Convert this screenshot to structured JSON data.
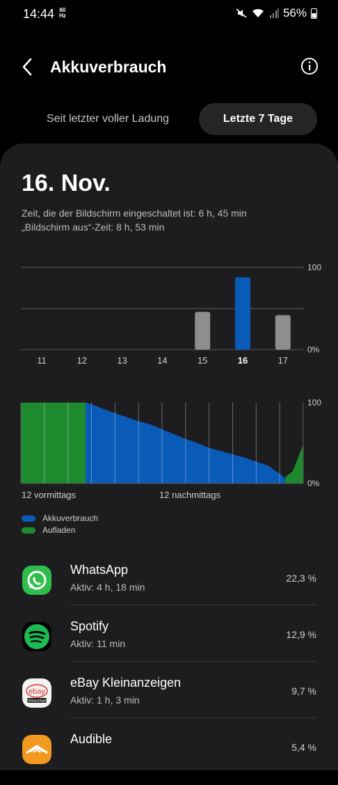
{
  "status": {
    "time": "14:44",
    "refresh_top": "60",
    "refresh_bottom": "Hz",
    "battery": "56%"
  },
  "header": {
    "title": "Akkuverbrauch"
  },
  "tabs": {
    "since_full": "Seit letzter voller Ladung",
    "last7": "Letzte 7 Tage"
  },
  "summary": {
    "date": "16. Nov.",
    "screen_on": "Zeit, die der Bildschirm eingeschaltet ist: 6 h, 45 min",
    "screen_off": "„Bildschirm aus“-Zeit: 8 h, 53 min"
  },
  "chart_data": [
    {
      "type": "bar",
      "categories": [
        "11",
        "12",
        "13",
        "14",
        "15",
        "16",
        "17"
      ],
      "values": [
        0,
        0,
        0,
        0,
        46,
        88,
        42
      ],
      "ylim": [
        0,
        100
      ],
      "ytick_labels": [
        "100",
        "0%"
      ],
      "selected": "16",
      "colors": {
        "normal": "#8e8e8e",
        "selected": "#0a5ab8"
      }
    },
    {
      "type": "area",
      "ylim": [
        0,
        100
      ],
      "ytick_labels": [
        "100",
        "0%"
      ],
      "xtick_labels": [
        "12 vormittags",
        "12 nachmittags"
      ],
      "x_hours": [
        0,
        5.5,
        6,
        7,
        8,
        9,
        10,
        11,
        12,
        13,
        14,
        15,
        16,
        17,
        18,
        19,
        20,
        21,
        22,
        23,
        24
      ],
      "x_end_hours": 23.1,
      "series": [
        {
          "name": "Akkuverbrauch",
          "color": "#0a5ab8",
          "points": [
            [
              5.5,
              100
            ],
            [
              6,
              98
            ],
            [
              7,
              92
            ],
            [
              8,
              87
            ],
            [
              9,
              82
            ],
            [
              10,
              77
            ],
            [
              11,
              73
            ],
            [
              12,
              67
            ],
            [
              13,
              61
            ],
            [
              14,
              55
            ],
            [
              15,
              50
            ],
            [
              16,
              44
            ],
            [
              17,
              40
            ],
            [
              18,
              36
            ],
            [
              19,
              32
            ],
            [
              20,
              27
            ],
            [
              21,
              22
            ],
            [
              22,
              12
            ],
            [
              22.5,
              6
            ],
            [
              23.1,
              10
            ]
          ]
        },
        {
          "name": "Aufladen",
          "color": "#1e8a2e",
          "segments": [
            [
              0,
              5.5,
              100
            ]
          ],
          "end_rise": [
            [
              22.5,
              8
            ],
            [
              23.1,
              15
            ],
            [
              24,
              48
            ]
          ]
        }
      ]
    }
  ],
  "legend": [
    {
      "label": "Akkuverbrauch",
      "color": "#0a5ab8"
    },
    {
      "label": "Aufladen",
      "color": "#1e8a2e"
    }
  ],
  "apps": [
    {
      "name": "WhatsApp",
      "active": "Aktiv: 4 h, 18 min",
      "percent": "22,3 %",
      "icon": "whatsapp-icon"
    },
    {
      "name": "Spotify",
      "active": "Aktiv: 11 min",
      "percent": "12,9 %",
      "icon": "spotify-icon"
    },
    {
      "name": "eBay Kleinanzeigen",
      "active": "Aktiv: 1 h, 3 min",
      "percent": "9,7 %",
      "icon": "ebay-kleinanzeigen-icon",
      "icon_text": "ebay",
      "icon_subtext": "Kleinanzeigen"
    },
    {
      "name": "Audible",
      "active": "",
      "percent": "5,4 %",
      "icon": "audible-icon"
    }
  ]
}
